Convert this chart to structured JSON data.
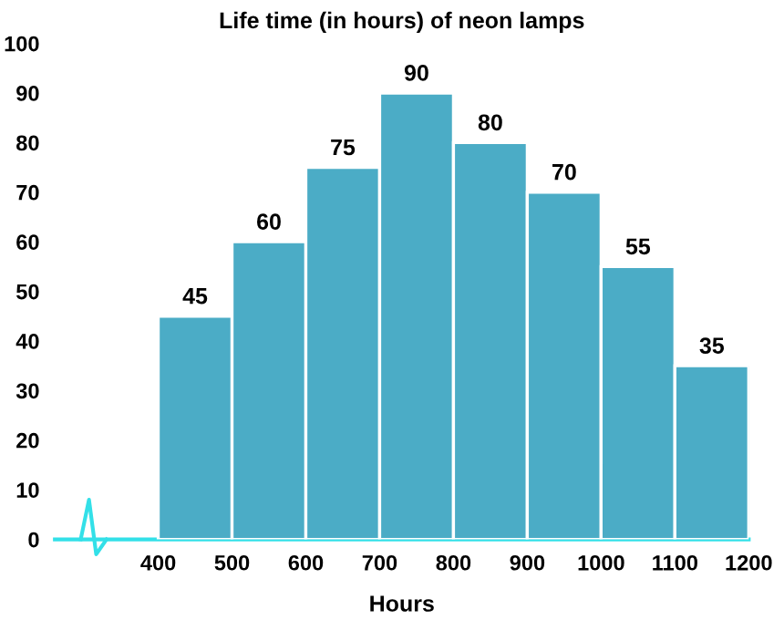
{
  "chart_data": {
    "type": "histogram",
    "title": "Life time (in hours) of neon lamps",
    "xlabel": "Hours",
    "bins": [
      400,
      500,
      600,
      700,
      800,
      900,
      1000,
      1100,
      1200
    ],
    "values": [
      45,
      60,
      75,
      90,
      80,
      70,
      55,
      35
    ],
    "color": "#4bacc6",
    "data_labels": true,
    "grid": false,
    "xlim": [
      260,
      1200
    ],
    "xticks": [
      400,
      500,
      600,
      700,
      800,
      900,
      1000,
      1100,
      1200
    ],
    "ylim": [
      0,
      100
    ],
    "yticks": [
      0,
      10,
      20,
      30,
      40,
      50,
      60,
      70,
      80,
      90,
      100
    ]
  }
}
